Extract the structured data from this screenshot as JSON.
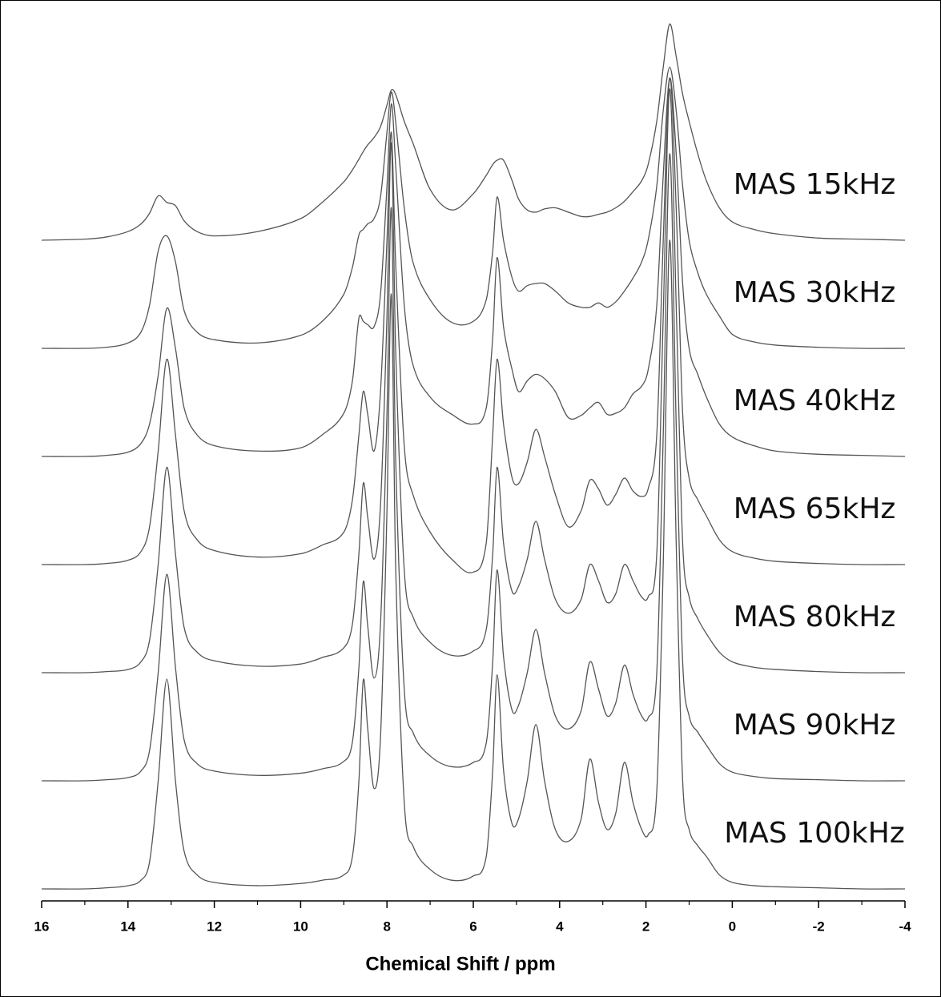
{
  "chart_data": {
    "type": "line",
    "xlabel": "Chemical Shift / ppm",
    "xlim": [
      16,
      -4
    ],
    "xticks": [
      16,
      14,
      12,
      10,
      8,
      6,
      4,
      2,
      0,
      -2,
      -4
    ],
    "xminorticks": [
      15,
      13,
      11,
      9,
      7,
      5,
      3,
      1,
      -1,
      -3
    ],
    "ylim": [
      -1,
      81
    ],
    "x": [
      16,
      15,
      14.5,
      14,
      13.7,
      13.5,
      13.3,
      13.1,
      12.9,
      12.7,
      12.4,
      12,
      11,
      10,
      9.5,
      9,
      8.8,
      8.65,
      8.55,
      8.45,
      8.3,
      8.15,
      8.0,
      7.9,
      7.8,
      7.6,
      7.4,
      7.0,
      6.5,
      6.0,
      5.7,
      5.55,
      5.45,
      5.3,
      5.1,
      4.95,
      4.75,
      4.55,
      4.35,
      4.1,
      3.8,
      3.5,
      3.3,
      3.1,
      2.9,
      2.7,
      2.5,
      2.3,
      2.1,
      1.95,
      1.75,
      1.6,
      1.45,
      1.3,
      1.15,
      1.0,
      0.8,
      0.6,
      0.3,
      0,
      -0.5,
      -1,
      -2,
      -3,
      -4
    ],
    "series": [
      {
        "name": "MAS 15kHz",
        "color": "#555555",
        "values": [
          60,
          60.1,
          60.3,
          60.8,
          61.5,
          62.5,
          64.1,
          63.5,
          63.2,
          61.8,
          60.8,
          60.4,
          60.8,
          62,
          63.5,
          65.4,
          66.5,
          67.5,
          68.2,
          68.8,
          69.5,
          70.5,
          72.5,
          73.9,
          73.5,
          71,
          69,
          64.7,
          62.8,
          64.3,
          66,
          67,
          67.4,
          67.4,
          65.5,
          63.8,
          62.8,
          62.6,
          62.9,
          63,
          62.6,
          62.2,
          62.2,
          62.4,
          62.6,
          63,
          63.6,
          64.5,
          65.5,
          67,
          71,
          76,
          80,
          77,
          73.5,
          71,
          68,
          65.5,
          63,
          61.7,
          61,
          60.6,
          60.2,
          60.1,
          60
        ]
      },
      {
        "name": "MAS 30kHz",
        "color": "#555555",
        "values": [
          50,
          50,
          50.1,
          50.5,
          51.5,
          54,
          59,
          60.4,
          58,
          53.5,
          51.5,
          50.8,
          50.5,
          51.2,
          52.5,
          55,
          57.5,
          60.5,
          61,
          61.5,
          62,
          64,
          70,
          73.7,
          71,
          63,
          58,
          54.5,
          52.4,
          52.5,
          54.5,
          59,
          64,
          60,
          56.5,
          55.3,
          55.8,
          56,
          56,
          55.3,
          54.2,
          53.8,
          53.8,
          54.2,
          53.8,
          54.3,
          55.3,
          56.5,
          58,
          60,
          65,
          72,
          76,
          72,
          65,
          60,
          57,
          55,
          53,
          51.3,
          50.6,
          50.3,
          50.1,
          50,
          50
        ]
      },
      {
        "name": "MAS 40kHz",
        "color": "#555555",
        "values": [
          40,
          40,
          40.1,
          40.4,
          41.2,
          43,
          47.5,
          53.7,
          50,
          44.5,
          42,
          41,
          40.5,
          40.8,
          42,
          44,
          47,
          52.8,
          52.5,
          52.2,
          52,
          55,
          65,
          72.6,
          67,
          54,
          48.5,
          45.5,
          43.9,
          43,
          44.5,
          51,
          58.4,
          52,
          48,
          46,
          47,
          47.6,
          47.2,
          46,
          43.6,
          43.8,
          44.5,
          45,
          43.9,
          44,
          44.5,
          45.8,
          46.5,
          48,
          54,
          66,
          75,
          68,
          56,
          50,
          47.6,
          45.5,
          43,
          41.8,
          41,
          40.5,
          40.2,
          40.1,
          40
        ]
      },
      {
        "name": "MAS 65kHz",
        "color": "#555555",
        "values": [
          30,
          30,
          30.1,
          30.4,
          31.2,
          33.5,
          40.5,
          49,
          42,
          35,
          32.3,
          31.3,
          30.7,
          31,
          31.8,
          33,
          36,
          42,
          46,
          44,
          40.5,
          46,
          60,
          70,
          58,
          41,
          36.5,
          33,
          30.5,
          29.3,
          32,
          42,
          49,
          43,
          38,
          37.5,
          39.5,
          42.5,
          40,
          36.5,
          33.5,
          35,
          37.8,
          37,
          35.5,
          36.5,
          38,
          36.8,
          36.3,
          37,
          42,
          60,
          75,
          63,
          44,
          38,
          36,
          34.5,
          32.3,
          31.2,
          30.6,
          30.3,
          30.1,
          30,
          30
        ]
      },
      {
        "name": "MAS 80kHz",
        "color": "#555555",
        "values": [
          20,
          20,
          20.1,
          20.3,
          21,
          23,
          30,
          39,
          31,
          24.2,
          21.9,
          21.1,
          20.6,
          20.8,
          21.4,
          22.3,
          24.5,
          31,
          37.5,
          34.5,
          30.5,
          35.5,
          53,
          69,
          50,
          29.5,
          25.2,
          22.8,
          21.6,
          22,
          24,
          31,
          39,
          32,
          27.5,
          28,
          30.5,
          34,
          30.5,
          26.8,
          25.5,
          26.8,
          30,
          28.5,
          26.5,
          27.3,
          30,
          28.5,
          27,
          27,
          31,
          53,
          74,
          54,
          32,
          27,
          25,
          23.6,
          21.9,
          21,
          20.5,
          20.3,
          20.1,
          20,
          20
        ]
      },
      {
        "name": "MAS 90kHz",
        "color": "#555555",
        "values": [
          10,
          10,
          10.1,
          10.3,
          10.9,
          12.8,
          20,
          29.1,
          20.5,
          13.8,
          11.6,
          10.9,
          10.5,
          10.7,
          11.1,
          11.8,
          13.6,
          20.5,
          28.4,
          24.5,
          19.5,
          24.5,
          44,
          63,
          40,
          18.5,
          14.5,
          12.3,
          11.3,
          11.7,
          13.5,
          21,
          29.5,
          21.5,
          16.5,
          17,
          20,
          24,
          20,
          16,
          14.8,
          16.5,
          21,
          18.5,
          16,
          17.2,
          20.7,
          18,
          16,
          15.8,
          20,
          42,
          68,
          43,
          21,
          16,
          14.5,
          13.3,
          11.6,
          10.8,
          10.4,
          10.2,
          10.1,
          10,
          10
        ]
      },
      {
        "name": "MAS 100kHz",
        "color": "#555555",
        "values": [
          0,
          0,
          0.1,
          0.3,
          0.8,
          2.5,
          10,
          19.4,
          10,
          3.5,
          1.3,
          0.6,
          0.3,
          0.5,
          0.8,
          1.3,
          3,
          10,
          19.3,
          15,
          9.3,
          14,
          35,
          55,
          30,
          8,
          4,
          1.8,
          0.8,
          1.2,
          3,
          11,
          19.8,
          11,
          6,
          6.5,
          10,
          15.2,
          10,
          5.5,
          4.4,
          6.5,
          12,
          8,
          5.5,
          7,
          11.7,
          8,
          5.5,
          5,
          9,
          30,
          60,
          32,
          10,
          5.5,
          4,
          3,
          1.3,
          0.6,
          0.3,
          0.2,
          0.1,
          0,
          0
        ]
      }
    ]
  }
}
